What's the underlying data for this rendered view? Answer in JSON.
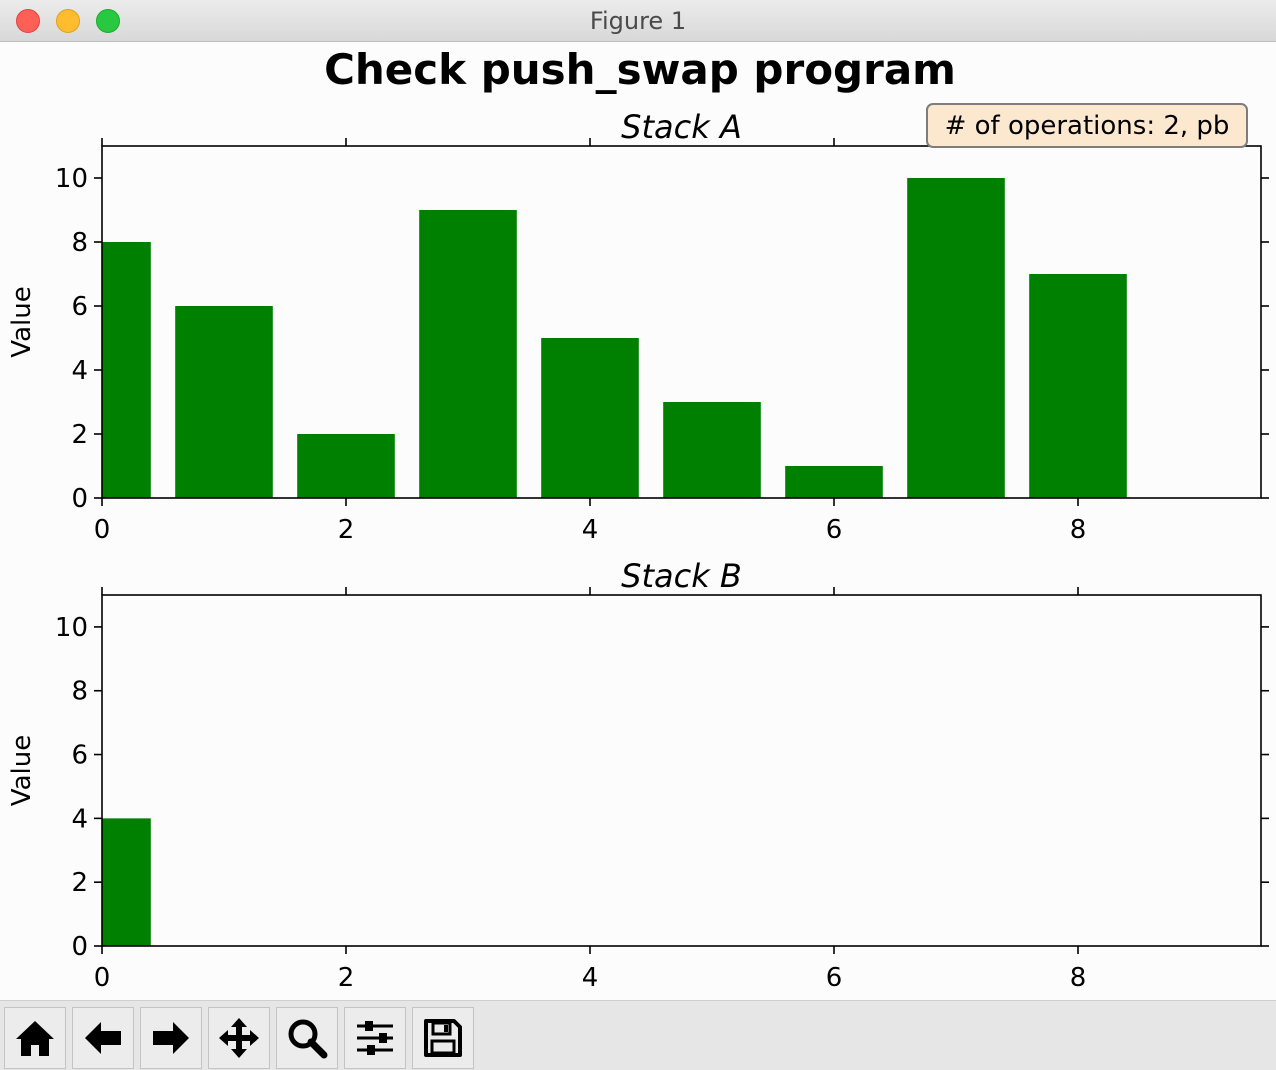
{
  "window": {
    "title": "Figure 1"
  },
  "toolbar": {
    "buttons": [
      {
        "name": "home-button",
        "icon": "home-icon"
      },
      {
        "name": "back-button",
        "icon": "arrow-left-icon"
      },
      {
        "name": "forward-button",
        "icon": "arrow-right-icon"
      },
      {
        "name": "pan-button",
        "icon": "move-icon"
      },
      {
        "name": "zoom-button",
        "icon": "magnifier-icon"
      },
      {
        "name": "configure-subplots-button",
        "icon": "sliders-icon"
      },
      {
        "name": "save-button",
        "icon": "floppy-disk-icon"
      }
    ]
  },
  "colors": {
    "bar": "#008000",
    "annotation_bg": "#fbe8cf",
    "annotation_border": "#7d7d7d"
  },
  "chart_data": {
    "suptitle": "Check push_swap program",
    "annotation": "# of operations: 2, pb",
    "charts": [
      {
        "type": "bar",
        "title": "Stack A",
        "ylabel": "Value",
        "x": [
          0,
          1,
          2,
          3,
          4,
          5,
          6,
          7,
          8
        ],
        "values": [
          8,
          6,
          2,
          9,
          5,
          3,
          1,
          10,
          7
        ],
        "xlim": [
          0,
          9.5
        ],
        "ylim": [
          0,
          11
        ],
        "xticks": [
          "0",
          "2",
          "4",
          "6",
          "8"
        ],
        "yticks": [
          "0",
          "2",
          "4",
          "6",
          "8",
          "10"
        ],
        "grid": false
      },
      {
        "type": "bar",
        "title": "Stack B",
        "ylabel": "Value",
        "x": [
          0
        ],
        "values": [
          4
        ],
        "xlim": [
          0,
          9.5
        ],
        "ylim": [
          0,
          11
        ],
        "xticks": [
          "0",
          "2",
          "4",
          "6",
          "8"
        ],
        "yticks": [
          "0",
          "2",
          "4",
          "6",
          "8",
          "10"
        ],
        "grid": false
      }
    ]
  }
}
